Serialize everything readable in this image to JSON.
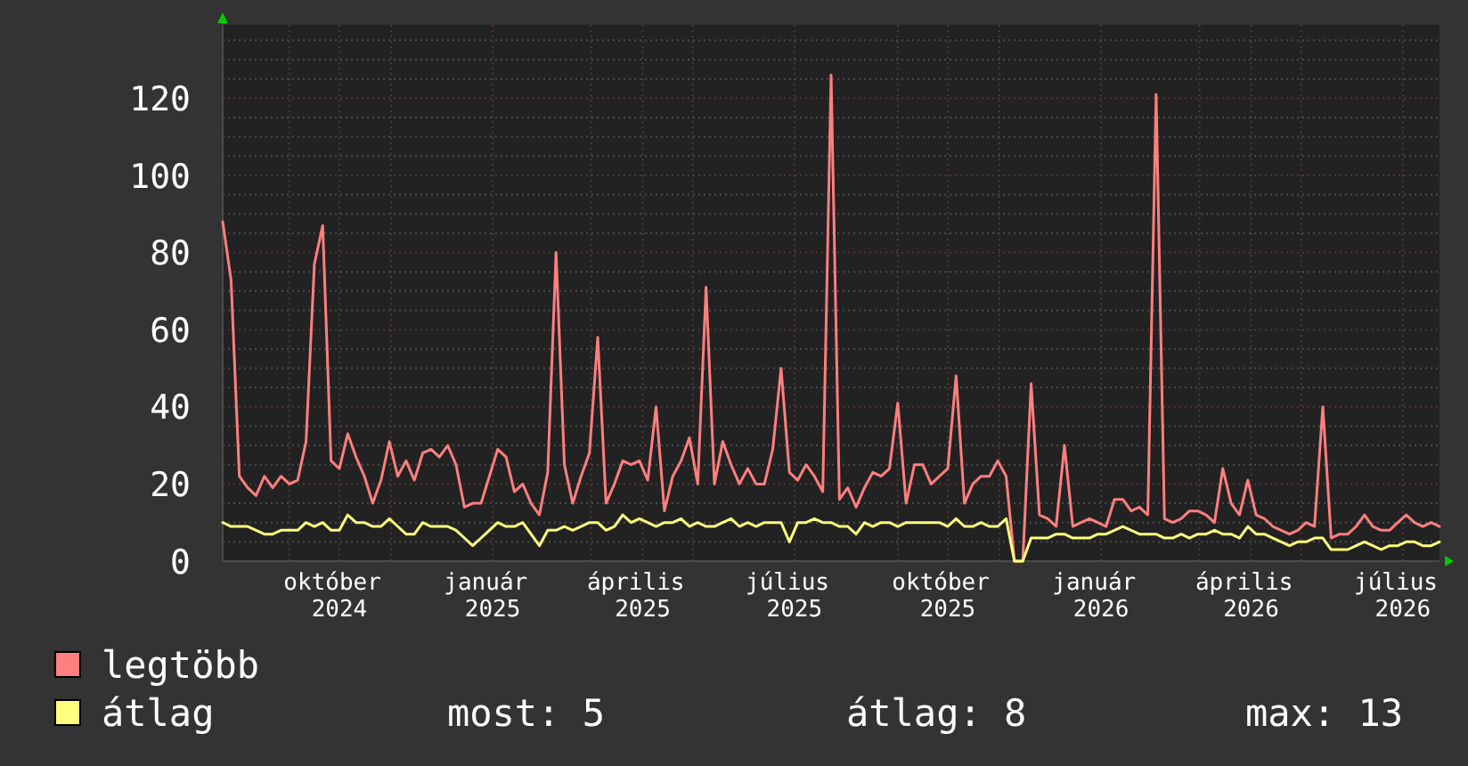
{
  "chart_data": {
    "type": "line",
    "x": [
      "2024-07-23",
      "2024-07-28",
      "2024-08-02",
      "2024-08-07",
      "2024-08-12",
      "2024-08-17",
      "2024-08-22",
      "2024-08-27",
      "2024-09-01",
      "2024-09-06",
      "2024-09-11",
      "2024-09-16",
      "2024-09-21",
      "2024-09-26",
      "2024-10-01",
      "2024-10-06",
      "2024-10-11",
      "2024-10-16",
      "2024-10-21",
      "2024-10-26",
      "2024-10-31",
      "2024-11-05",
      "2024-11-10",
      "2024-11-15",
      "2024-11-20",
      "2024-11-25",
      "2024-11-30",
      "2024-12-05",
      "2024-12-10",
      "2024-12-15",
      "2024-12-20",
      "2024-12-25",
      "2024-12-30",
      "2025-01-04",
      "2025-01-09",
      "2025-01-14",
      "2025-01-19",
      "2025-01-24",
      "2025-01-29",
      "2025-02-03",
      "2025-02-08",
      "2025-02-13",
      "2025-02-18",
      "2025-02-23",
      "2025-02-28",
      "2025-03-05",
      "2025-03-10",
      "2025-03-15",
      "2025-03-20",
      "2025-03-25",
      "2025-03-30",
      "2025-04-04",
      "2025-04-09",
      "2025-04-14",
      "2025-04-19",
      "2025-04-24",
      "2025-04-29",
      "2025-05-04",
      "2025-05-09",
      "2025-05-14",
      "2025-05-19",
      "2025-05-24",
      "2025-05-29",
      "2025-06-03",
      "2025-06-08",
      "2025-06-13",
      "2025-06-18",
      "2025-06-23",
      "2025-06-28",
      "2025-07-03",
      "2025-07-08",
      "2025-07-13",
      "2025-07-18",
      "2025-07-23",
      "2025-07-28",
      "2025-08-02",
      "2025-08-07",
      "2025-08-12",
      "2025-08-17",
      "2025-08-22",
      "2025-08-27",
      "2025-09-01",
      "2025-09-06",
      "2025-09-11",
      "2025-09-16",
      "2025-09-21",
      "2025-09-26",
      "2025-10-01",
      "2025-10-06",
      "2025-10-11",
      "2025-10-16",
      "2025-10-21",
      "2025-10-26",
      "2025-10-31",
      "2025-11-05",
      "2025-11-10",
      "2025-11-15",
      "2025-11-20",
      "2025-11-25",
      "2025-11-30",
      "2025-12-05",
      "2025-12-10",
      "2025-12-15",
      "2025-12-20",
      "2025-12-25",
      "2025-12-30",
      "2026-01-04",
      "2026-01-09",
      "2026-01-14",
      "2026-01-19",
      "2026-01-24",
      "2026-01-29",
      "2026-02-03",
      "2026-02-08",
      "2026-02-13",
      "2026-02-18",
      "2026-02-23",
      "2026-02-28",
      "2026-03-05",
      "2026-03-10",
      "2026-03-15",
      "2026-03-20",
      "2026-03-25",
      "2026-03-30",
      "2026-04-04",
      "2026-04-09",
      "2026-04-14",
      "2026-04-19",
      "2026-04-24",
      "2026-04-29",
      "2026-05-04",
      "2026-05-09",
      "2026-05-14",
      "2026-05-19",
      "2026-05-24",
      "2026-05-29",
      "2026-06-03",
      "2026-06-08",
      "2026-06-13",
      "2026-06-18",
      "2026-06-23",
      "2026-06-28",
      "2026-07-03",
      "2026-07-08",
      "2026-07-13",
      "2026-07-18",
      "2026-07-23"
    ],
    "series": [
      {
        "name": "legtöbb",
        "color": "#ff7f7f",
        "values": [
          88,
          73,
          22,
          19,
          17,
          22,
          19,
          22,
          20,
          21,
          31,
          77,
          87,
          26,
          24,
          33,
          27,
          22,
          15,
          21,
          31,
          22,
          26,
          21,
          28,
          29,
          27,
          30,
          25,
          14,
          15,
          15,
          22,
          29,
          27,
          18,
          20,
          15,
          12,
          23,
          80,
          25,
          15,
          22,
          28,
          58,
          15,
          20,
          26,
          25,
          26,
          21,
          40,
          13,
          22,
          26,
          32,
          20,
          71,
          20,
          31,
          25,
          20,
          24,
          20,
          20,
          29,
          50,
          23,
          21,
          25,
          22,
          18,
          126,
          16,
          19,
          14,
          19,
          23,
          22,
          24,
          41,
          15,
          25,
          25,
          20,
          22,
          24,
          48,
          15,
          20,
          22,
          22,
          26,
          22,
          0,
          0,
          46,
          12,
          11,
          9,
          30,
          9,
          10,
          11,
          10,
          9,
          16,
          16,
          13,
          14,
          12,
          121,
          11,
          10,
          11,
          13,
          13,
          12,
          10,
          24,
          15,
          12,
          21,
          12,
          11,
          9,
          8,
          7,
          8,
          10,
          9,
          40,
          6,
          7,
          7,
          9,
          12,
          9,
          8,
          8,
          10,
          12,
          10,
          9,
          10,
          9
        ]
      },
      {
        "name": "átlag",
        "color": "#ffff7f",
        "values": [
          10,
          9,
          9,
          9,
          8,
          7,
          7,
          8,
          8,
          8,
          10,
          9,
          10,
          8,
          8,
          12,
          10,
          10,
          9,
          9,
          11,
          9,
          7,
          7,
          10,
          9,
          9,
          9,
          8,
          6,
          4,
          6,
          8,
          10,
          9,
          9,
          10,
          7,
          4,
          8,
          8,
          9,
          8,
          9,
          10,
          10,
          8,
          9,
          12,
          10,
          11,
          10,
          9,
          10,
          10,
          11,
          9,
          10,
          9,
          9,
          10,
          11,
          9,
          10,
          9,
          10,
          10,
          10,
          5,
          10,
          10,
          11,
          10,
          10,
          9,
          9,
          7,
          10,
          9,
          10,
          10,
          9,
          10,
          10,
          10,
          10,
          10,
          9,
          11,
          9,
          9,
          10,
          9,
          9,
          11,
          0,
          0,
          6,
          6,
          6,
          7,
          7,
          6,
          6,
          6,
          7,
          7,
          8,
          9,
          8,
          7,
          7,
          7,
          6,
          6,
          7,
          6,
          7,
          7,
          8,
          7,
          7,
          6,
          9,
          7,
          7,
          6,
          5,
          4,
          5,
          5,
          6,
          6,
          3,
          3,
          3,
          4,
          5,
          4,
          3,
          4,
          4,
          5,
          5,
          4,
          4,
          5
        ]
      }
    ],
    "xlim": [
      "2024-07-23",
      "2026-07-23"
    ],
    "xticks": [
      {
        "value": "2024-09-01",
        "label": null
      },
      {
        "value": "2024-10-01",
        "label": "október 2024"
      },
      {
        "value": "2024-11-01",
        "label": null
      },
      {
        "value": "2025-01-01",
        "label": "január 2025"
      },
      {
        "value": "2025-03-01",
        "label": null
      },
      {
        "value": "2025-04-01",
        "label": "április 2025"
      },
      {
        "value": "2025-05-01",
        "label": null
      },
      {
        "value": "2025-07-01",
        "label": "július 2025"
      },
      {
        "value": "2025-09-01",
        "label": null
      },
      {
        "value": "2025-10-01",
        "label": "október 2025"
      },
      {
        "value": "2025-11-01",
        "label": null
      },
      {
        "value": "2026-01-01",
        "label": "január 2026"
      },
      {
        "value": "2026-03-01",
        "label": null
      },
      {
        "value": "2026-04-01",
        "label": "április 2026"
      },
      {
        "value": "2026-05-01",
        "label": null
      },
      {
        "value": "2026-07-01",
        "label": "július 2026"
      }
    ],
    "ylim": [
      0,
      139
    ],
    "yticks": [
      0,
      {
        "value": 5,
        "label": null
      },
      {
        "value": 10,
        "label": null
      },
      {
        "value": 15,
        "label": null
      },
      20,
      {
        "value": 25,
        "label": null
      },
      {
        "value": 30,
        "label": null
      },
      {
        "value": 35,
        "label": null
      },
      40,
      {
        "value": 45,
        "label": null
      },
      {
        "value": 50,
        "label": null
      },
      {
        "value": 55,
        "label": null
      },
      60,
      {
        "value": 65,
        "label": null
      },
      {
        "value": 70,
        "label": null
      },
      {
        "value": 75,
        "label": null
      },
      80,
      {
        "value": 85,
        "label": null
      },
      {
        "value": 90,
        "label": null
      },
      {
        "value": 95,
        "label": null
      },
      100,
      {
        "value": 105,
        "label": null
      },
      {
        "value": 110,
        "label": null
      },
      {
        "value": 115,
        "label": null
      },
      120,
      {
        "value": 125,
        "label": null
      },
      {
        "value": 130,
        "label": null
      },
      {
        "value": 135,
        "label": null
      }
    ],
    "grid": true,
    "legend": "bottom",
    "annotations": [
      "most: 5",
      "átlag: 8",
      "max: 13"
    ]
  }
}
